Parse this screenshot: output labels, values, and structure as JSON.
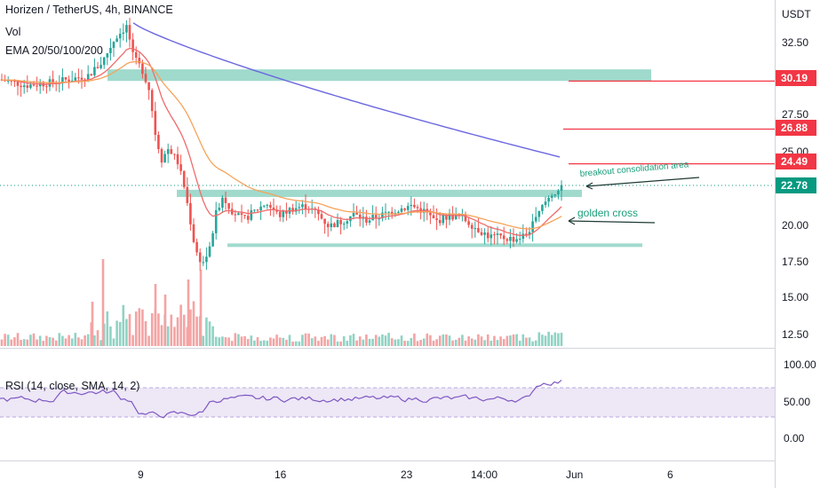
{
  "header": {
    "symbol_line": "Horizen / TetherUS, 4h, BINANCE",
    "vol_label": "Vol",
    "ema_label": "EMA 20/50/100/200"
  },
  "rsi": {
    "label": "RSI (14, close, SMA, 14, 2)",
    "ticks": [
      "100.00",
      "50.00",
      "0.00"
    ]
  },
  "price_axis": {
    "currency": "USDT",
    "ticks": [
      "32.50",
      "27.50",
      "25.00",
      "20.00",
      "17.50",
      "15.00",
      "12.50"
    ]
  },
  "time_axis": {
    "ticks": [
      "9",
      "16",
      "23",
      "14:00",
      "Jun",
      "6"
    ]
  },
  "price_labels": [
    {
      "value": "30.19",
      "color": "#f23645"
    },
    {
      "value": "26.88",
      "color": "#f23645"
    },
    {
      "value": "24.49",
      "color": "#f23645"
    },
    {
      "value": "22.78",
      "color": "#089981"
    }
  ],
  "annotations": {
    "breakout": "breakout consolidation area",
    "golden_cross": "golden cross"
  },
  "colors": {
    "up": "#26a69a",
    "down": "#ef5350",
    "zone": "#8fd3c4",
    "ema20": "#f06b6b",
    "ema50": "#f5a35a",
    "ema200": "#6b67e0",
    "rsi_line": "#7e57c2",
    "rsi_band": "#ede7f6",
    "target_line": "#f23645"
  },
  "chart_data": {
    "type": "candlestick",
    "ylim": [
      11.5,
      35.5
    ],
    "key_levels": [
      30.19,
      26.88,
      24.49,
      22.78
    ],
    "zones": [
      {
        "low": 30.2,
        "high": 31.0
      },
      {
        "low": 22.2,
        "high": 22.7
      },
      {
        "low": 18.8,
        "high": 19.0
      }
    ],
    "rsi_ylim": [
      0,
      100
    ],
    "rsi_band": [
      30,
      70
    ]
  }
}
